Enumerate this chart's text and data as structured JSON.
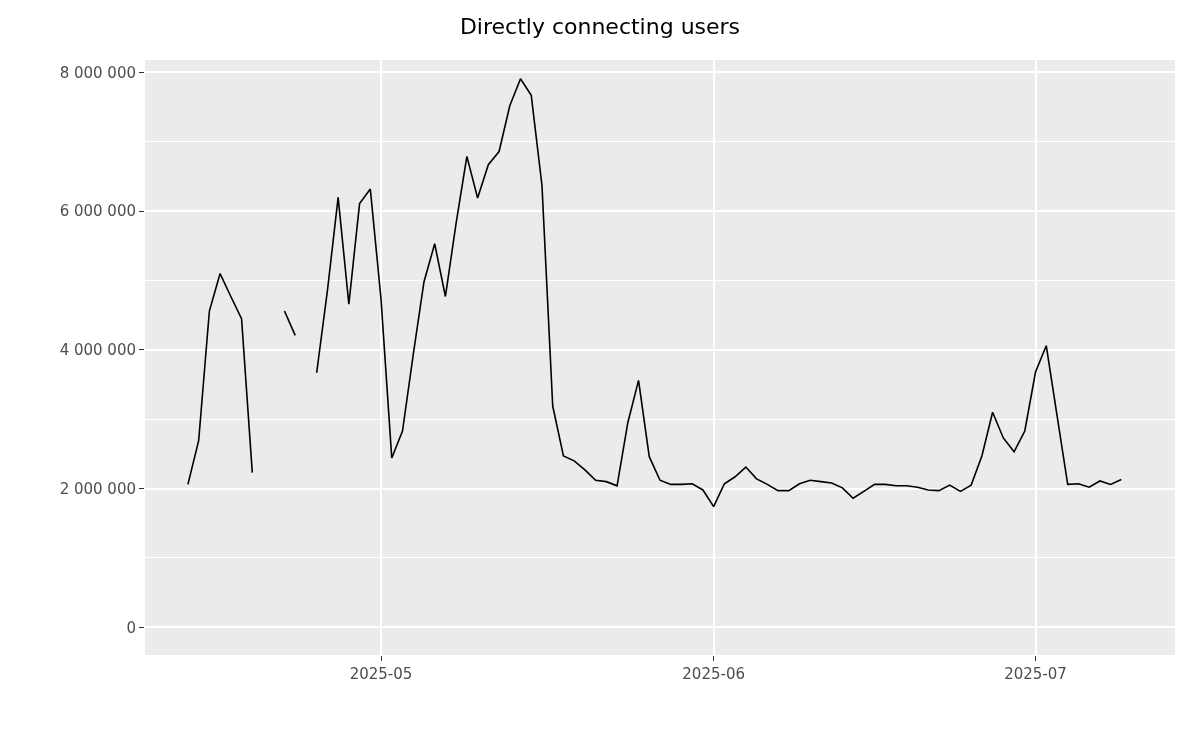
{
  "chart_data": {
    "type": "line",
    "title": "Directly connecting users",
    "x": [
      "2025-04-13",
      "2025-04-14",
      "2025-04-15",
      "2025-04-16",
      "2025-04-17",
      "2025-04-18",
      "2025-04-19",
      "2025-04-20",
      "2025-04-21",
      "2025-04-22",
      "2025-04-23",
      "2025-04-24",
      "2025-04-25",
      "2025-04-26",
      "2025-04-27",
      "2025-04-28",
      "2025-04-29",
      "2025-04-30",
      "2025-05-01",
      "2025-05-02",
      "2025-05-03",
      "2025-05-04",
      "2025-05-05",
      "2025-05-06",
      "2025-05-07",
      "2025-05-08",
      "2025-05-09",
      "2025-05-10",
      "2025-05-11",
      "2025-05-12",
      "2025-05-13",
      "2025-05-14",
      "2025-05-15",
      "2025-05-16",
      "2025-05-17",
      "2025-05-18",
      "2025-05-19",
      "2025-05-20",
      "2025-05-21",
      "2025-05-22",
      "2025-05-23",
      "2025-05-24",
      "2025-05-25",
      "2025-05-26",
      "2025-05-27",
      "2025-05-28",
      "2025-05-29",
      "2025-05-30",
      "2025-05-31",
      "2025-06-01",
      "2025-06-02",
      "2025-06-03",
      "2025-06-04",
      "2025-06-05",
      "2025-06-06",
      "2025-06-07",
      "2025-06-08",
      "2025-06-09",
      "2025-06-10",
      "2025-06-11",
      "2025-06-12",
      "2025-06-13",
      "2025-06-14",
      "2025-06-15",
      "2025-06-16",
      "2025-06-17",
      "2025-06-18",
      "2025-06-19",
      "2025-06-20",
      "2025-06-21",
      "2025-06-22",
      "2025-06-23",
      "2025-06-24",
      "2025-06-25",
      "2025-06-26",
      "2025-06-27",
      "2025-06-28",
      "2025-06-29",
      "2025-06-30",
      "2025-07-01",
      "2025-07-02",
      "2025-07-03",
      "2025-07-04",
      "2025-07-05",
      "2025-07-06",
      "2025-07-07",
      "2025-07-08",
      "2025-07-09"
    ],
    "series": [
      {
        "color": "#000000",
        "values": [
          2060000,
          2690000,
          4560000,
          5100000,
          4770000,
          4450000,
          2230000,
          null,
          null,
          4560000,
          4210000,
          null,
          3670000,
          4850000,
          6200000,
          4660000,
          6110000,
          6320000,
          4730000,
          2440000,
          2830000,
          3930000,
          4980000,
          5530000,
          4770000,
          5830000,
          6790000,
          6190000,
          6670000,
          6860000,
          7520000,
          7910000,
          7670000,
          6370000,
          3190000,
          2470000,
          2400000,
          2270000,
          2120000,
          2100000,
          2040000,
          2950000,
          3560000,
          2460000,
          2120000,
          2060000,
          2060000,
          2070000,
          1980000,
          1740000,
          2070000,
          2170000,
          2310000,
          2140000,
          2060000,
          1970000,
          1970000,
          2070000,
          2120000,
          2100000,
          2080000,
          2010000,
          1860000,
          1960000,
          2060000,
          2060000,
          2040000,
          2040000,
          2020000,
          1980000,
          1970000,
          2050000,
          1960000,
          2050000,
          2470000,
          3100000,
          2730000,
          2530000,
          2830000,
          3680000,
          4060000,
          3060000,
          2060000,
          2070000,
          2020000,
          2110000,
          2060000,
          2130000
        ]
      }
    ],
    "xlim": [
      "2025-04-09",
      "2025-07-14"
    ],
    "xticks": [
      {
        "value": "2025-05-01",
        "label": "2025-05"
      },
      {
        "value": "2025-06-01",
        "label": "2025-06"
      },
      {
        "value": "2025-07-01",
        "label": "2025-07"
      }
    ],
    "ylim": [
      -400000,
      8180000
    ],
    "yticks": [
      0,
      {
        "value": 2000000,
        "label": "2 000 000"
      },
      {
        "value": 4000000,
        "label": "4 000 000"
      },
      {
        "value": 6000000,
        "label": "6 000 000"
      },
      {
        "value": 8000000,
        "label": "8 000 000"
      }
    ],
    "grid": true,
    "line_style": "solid"
  }
}
